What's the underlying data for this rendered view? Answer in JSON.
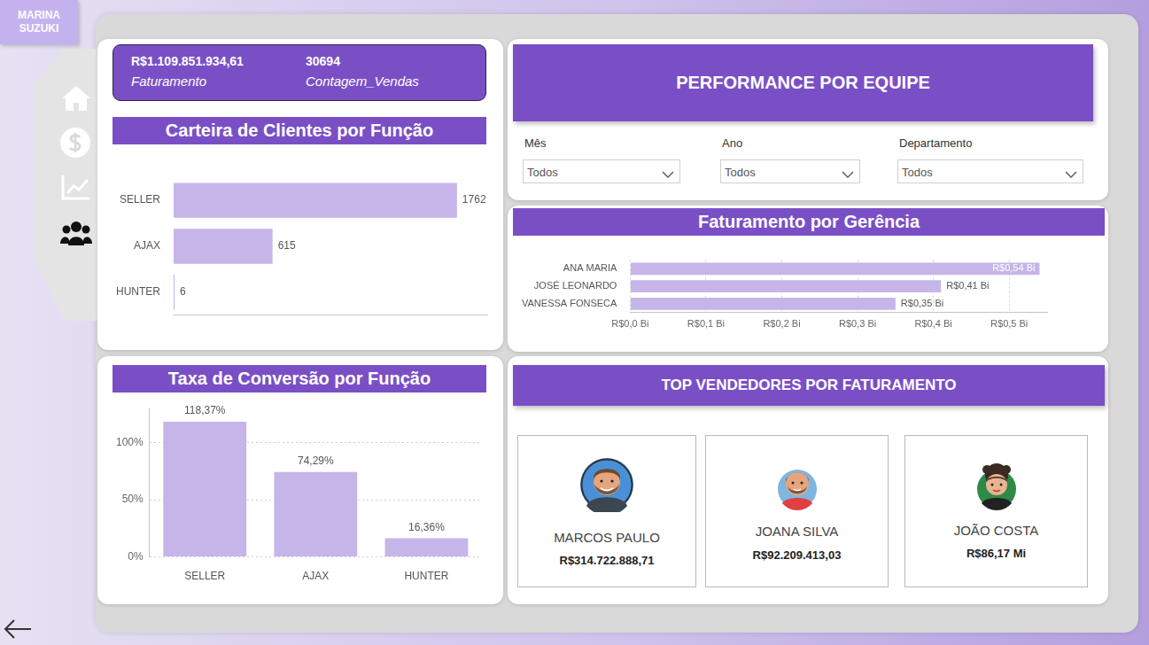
{
  "header": {
    "user": "MARINA SUZUKI"
  },
  "kpis": [
    {
      "value": "R$1.109.851.934,61",
      "label": "Faturamento"
    },
    {
      "value": "30694",
      "label": "Contagem_Vendas"
    }
  ],
  "team_panel": {
    "title": "PERFORMANCE POR EQUIPE",
    "filters": [
      {
        "label": "Mês",
        "value": "Todos"
      },
      {
        "label": "Ano",
        "value": "Todos"
      },
      {
        "label": "Departamento",
        "value": "Todos"
      }
    ]
  },
  "top_sellers": {
    "title": "TOP VENDEDORES POR FATURAMENTO",
    "sellers": [
      {
        "name": "MARCOS PAULO",
        "revenue": "R$314.722.888,71"
      },
      {
        "name": "JOANA SILVA",
        "revenue": "R$92.209.413,03"
      },
      {
        "name": "JOÃO COSTA",
        "revenue": "R$86,17 Mi"
      }
    ]
  },
  "chart_data": [
    {
      "type": "bar",
      "title": "Carteira de Clientes por Função",
      "orientation": "horizontal",
      "categories": [
        "SELLER",
        "AJAX",
        "HUNTER"
      ],
      "values": [
        1762,
        615,
        6
      ],
      "color": "#c6b5e8",
      "xlim": [
        0,
        1950
      ],
      "grid": false,
      "data_labels": true,
      "tick_labels": "y"
    },
    {
      "type": "bar",
      "title": "Taxa de Conversão por Função",
      "categories": [
        "SELLER",
        "AJAX",
        "HUNTER"
      ],
      "values": [
        118.37,
        74.29,
        16.36
      ],
      "value_labels": [
        "118,37%",
        "74,29%",
        "16,36%"
      ],
      "color": "#c6b5e8",
      "ylim": [
        0,
        130
      ],
      "yticks": [
        {
          "value": 0,
          "label": "0%"
        },
        {
          "value": 50,
          "label": "50%"
        },
        {
          "value": 100,
          "label": "100%"
        }
      ],
      "grid": true,
      "data_labels": true
    },
    {
      "type": "bar",
      "title": "Faturamento por Gerência",
      "orientation": "horizontal",
      "categories": [
        "ANA MARIA",
        "JOSÉ LEONARDO",
        "VANESSA FONSECA"
      ],
      "values": [
        0.54,
        0.41,
        0.35
      ],
      "value_labels": [
        "R$0,54 Bi",
        "R$0,41 Bi",
        "R$0,35 Bi"
      ],
      "color": "#c6b5e8",
      "xlim": [
        0,
        0.55
      ],
      "xticks": [
        {
          "value": 0,
          "label": "R$0,0 Bi"
        },
        {
          "value": 0.1,
          "label": "R$0,1 Bi"
        },
        {
          "value": 0.2,
          "label": "R$0,2 Bi"
        },
        {
          "value": 0.3,
          "label": "R$0,3 Bi"
        },
        {
          "value": 0.4,
          "label": "R$0,4 Bi"
        },
        {
          "value": 0.5,
          "label": "R$0,5 Bi"
        }
      ],
      "grid": true,
      "data_labels": true
    }
  ]
}
